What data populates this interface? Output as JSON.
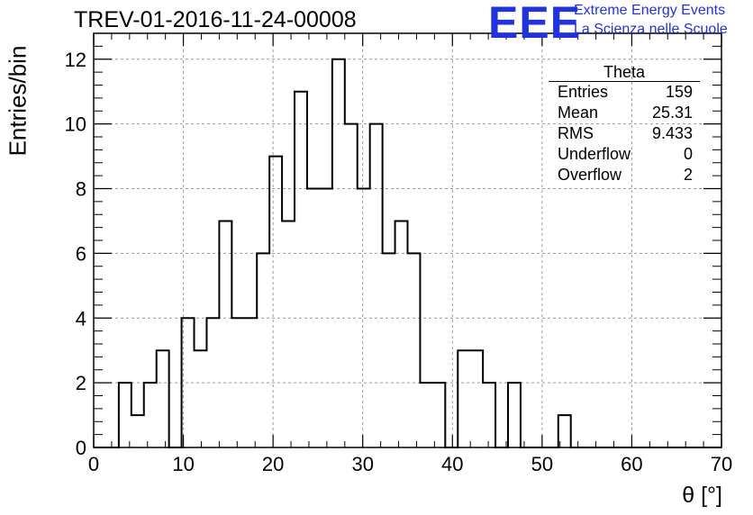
{
  "chart_data": {
    "type": "bar",
    "title": "TREV-01-2016-11-24-00008",
    "xlabel": "θ [°]",
    "ylabel": "Entries/bin",
    "xlim": [
      0,
      70
    ],
    "ylim": [
      0,
      12.8
    ],
    "x_ticks": [
      0,
      10,
      20,
      30,
      40,
      50,
      60,
      70
    ],
    "y_ticks": [
      0,
      2,
      4,
      6,
      8,
      10,
      12
    ],
    "grid": true,
    "bin_edges": [
      0,
      1.4,
      2.8,
      4.2,
      5.6,
      7,
      8.4,
      9.8,
      11.2,
      12.6,
      14,
      15.4,
      16.8,
      18.2,
      19.6,
      21,
      22.4,
      23.8,
      25.2,
      26.6,
      28,
      29.4,
      30.8,
      32.2,
      33.6,
      35,
      36.4,
      37.8,
      39.2,
      40.6,
      42,
      43.4,
      44.8,
      46.2,
      47.6,
      49,
      50.4,
      51.8,
      53.2,
      54.6,
      56,
      57.4,
      58.8,
      60.2,
      61.6,
      63,
      64.4,
      65.8,
      67.2,
      68.6,
      70
    ],
    "values": [
      0,
      0,
      2,
      1,
      2,
      3,
      0,
      4,
      3,
      4,
      7,
      4,
      4,
      6,
      9,
      7,
      11,
      8,
      8,
      12,
      10,
      8,
      10,
      6,
      7,
      6,
      2,
      2,
      0,
      3,
      3,
      2,
      0,
      2,
      0,
      0,
      0,
      1,
      0,
      0,
      0,
      0,
      0,
      0,
      0,
      0,
      0,
      0,
      0,
      0
    ]
  },
  "stats_box": {
    "title": "Theta",
    "rows": [
      {
        "label": "Entries",
        "value": "159"
      },
      {
        "label": "Mean",
        "value": "25.31"
      },
      {
        "label": "RMS",
        "value": "9.433"
      },
      {
        "label": "Underflow",
        "value": "0"
      },
      {
        "label": "Overflow",
        "value": "2"
      }
    ]
  },
  "logo": {
    "mark": "EEE",
    "line1": "Extreme Energy Events",
    "line2": "La Scienza nelle Scuole",
    "color": "#2233dd"
  }
}
